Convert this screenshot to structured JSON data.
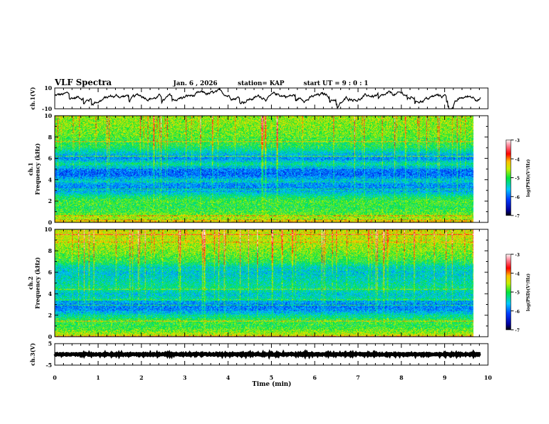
{
  "header": {
    "title": "VLF Spectra",
    "date": "Jan. 6 , 2026",
    "station": "station= KAP",
    "start": "start  UT =  9 : 0 : 1"
  },
  "chart_data": [
    {
      "type": "line",
      "name": "ch1-waveform",
      "ylabel": "ch.1(V)",
      "ylim": [
        -10,
        10
      ],
      "yticks": [
        "10",
        "-10"
      ],
      "xlim": [
        0,
        10
      ],
      "t_end_min": 9.83,
      "mean_v": 2.5,
      "noise_v": 2.5
    },
    {
      "type": "heatmap",
      "name": "ch1-spectrogram",
      "ylabel": "ch.1\nFrequency (kHz)",
      "ylim": [
        0,
        10
      ],
      "yticks": [
        "0",
        "2",
        "4",
        "6",
        "8",
        "10"
      ],
      "xlim": [
        0,
        10
      ],
      "t_end_min": 9.83,
      "band_profile_logpsd": [
        [
          0,
          -4.2
        ],
        [
          0.5,
          -4.6
        ],
        [
          1,
          -4.9
        ],
        [
          1.5,
          -5.0
        ],
        [
          2,
          -4.9
        ],
        [
          2.5,
          -5.2
        ],
        [
          3,
          -5.7
        ],
        [
          3.5,
          -5.8
        ],
        [
          4,
          -5.5
        ],
        [
          4.5,
          -6.0
        ],
        [
          5,
          -5.9
        ],
        [
          5.5,
          -5.2
        ],
        [
          6,
          -5.8
        ],
        [
          6.5,
          -5.5
        ],
        [
          7,
          -5.1
        ],
        [
          8,
          -4.8
        ],
        [
          9,
          -4.7
        ],
        [
          10,
          -4.6
        ]
      ],
      "colorbar": {
        "label": "log(PSD)(V²/Hz)",
        "range": [
          -7,
          -3
        ],
        "ticks": [
          "-3",
          "-4",
          "-5",
          "-6",
          "-7"
        ]
      }
    },
    {
      "type": "heatmap",
      "name": "ch2-spectrogram",
      "ylabel": "ch.2\nFrequency (kHz)",
      "ylim": [
        0,
        10
      ],
      "yticks": [
        "0",
        "2",
        "4",
        "6",
        "8",
        "10"
      ],
      "xlim": [
        0,
        10
      ],
      "t_end_min": 9.83,
      "band_profile_logpsd": [
        [
          0,
          -4.3
        ],
        [
          0.5,
          -4.7
        ],
        [
          1,
          -5.0
        ],
        [
          1.5,
          -4.9
        ],
        [
          2,
          -5.3
        ],
        [
          2.5,
          -5.8
        ],
        [
          3,
          -5.9
        ],
        [
          3.5,
          -5.3
        ],
        [
          4,
          -5.5
        ],
        [
          4.5,
          -5.2
        ],
        [
          5,
          -5.3
        ],
        [
          6,
          -5.5
        ],
        [
          6.5,
          -5.4
        ],
        [
          7,
          -5.0
        ],
        [
          8,
          -4.7
        ],
        [
          9,
          -4.5
        ],
        [
          10,
          -4.4
        ]
      ],
      "colorbar": {
        "label": "log(PSD)(V²/Hz)",
        "range": [
          -7,
          -3
        ],
        "ticks": [
          "-3",
          "-4",
          "-5",
          "-6",
          "-7"
        ]
      }
    },
    {
      "type": "line",
      "name": "ch3-waveform",
      "ylabel": "ch.3(V)",
      "ylim": [
        -5,
        5
      ],
      "yticks": [
        "5",
        "-5"
      ],
      "xlim": [
        0,
        10
      ],
      "t_end_min": 9.83,
      "mean_v": 0,
      "noise_v": 0.6
    }
  ],
  "xaxis": {
    "label": "Time  (min)",
    "ticks": [
      "0",
      "1",
      "2",
      "3",
      "4",
      "5",
      "6",
      "7",
      "8",
      "9",
      "10"
    ]
  }
}
